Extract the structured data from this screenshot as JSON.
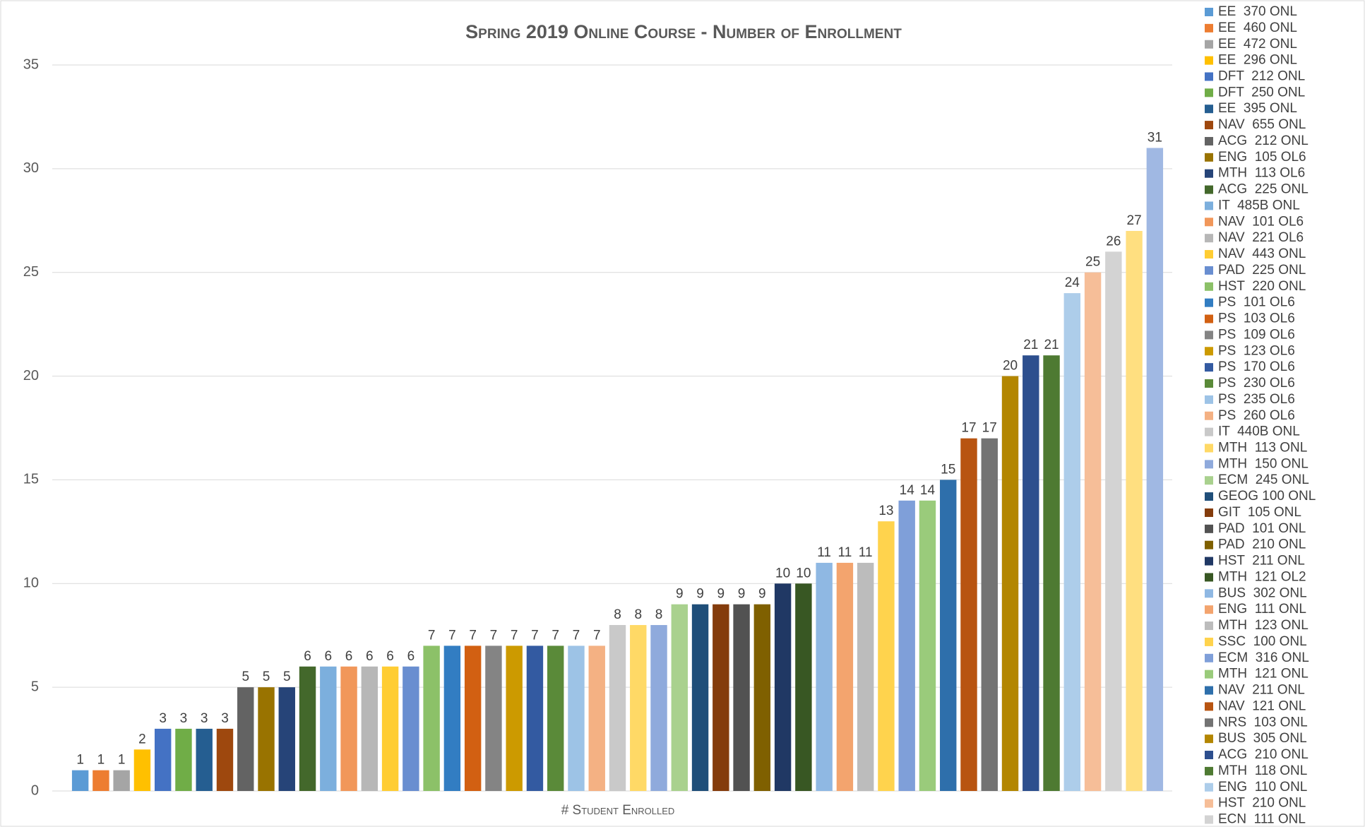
{
  "chart_data": {
    "type": "bar",
    "title": "Spring 2019 Online Course - Number of Enrollment",
    "x_label": "# Student Enrolled",
    "categories": [
      "EE  370 ONL",
      "EE  460 ONL",
      "EE  472 ONL",
      "EE  296 ONL",
      "DFT  212 ONL",
      "DFT  250 ONL",
      "EE  395 ONL",
      "NAV  655 ONL",
      "ACG  212 ONL",
      "ENG  105 OL6",
      "MTH  113 OL6",
      "ACG  225 ONL",
      "IT  485B ONL",
      "NAV  101 OL6",
      "NAV  221 OL6",
      "NAV  443 ONL",
      "PAD  225 ONL",
      "HST  220 ONL",
      "PS  101 OL6",
      "PS  103 OL6",
      "PS  109 OL6",
      "PS  123 OL6",
      "PS  170 OL6",
      "PS  230 OL6",
      "PS  235 OL6",
      "PS  260 OL6",
      "IT  440B ONL",
      "MTH  113 ONL",
      "MTH  150 ONL",
      "ECM  245 ONL",
      "GEOG 100 ONL",
      "GIT  105 ONL",
      "PAD  101 ONL",
      "PAD  210 ONL",
      "HST  211 ONL",
      "MTH  121 OL2",
      "BUS  302 ONL",
      "ENG  111 ONL",
      "MTH  123 ONL",
      "SSC  100 ONL",
      "ECM  316 ONL",
      "MTH  121 ONL",
      "NAV  211 ONL",
      "NAV  121 ONL",
      "NRS  103 ONL",
      "BUS  305 ONL",
      "ACG  210 ONL",
      "MTH  118 ONL",
      "ENG  110 ONL",
      "HST  210 ONL",
      "ECN  111 ONL",
      null,
      null
    ],
    "values": [
      1,
      1,
      1,
      2,
      3,
      3,
      3,
      3,
      5,
      5,
      5,
      6,
      6,
      6,
      6,
      6,
      6,
      7,
      7,
      7,
      7,
      7,
      7,
      7,
      7,
      7,
      8,
      8,
      8,
      9,
      9,
      9,
      9,
      9,
      10,
      10,
      11,
      11,
      11,
      13,
      14,
      14,
      15,
      17,
      17,
      20,
      21,
      21,
      24,
      25,
      26,
      27,
      31
    ],
    "colors": [
      "#5B9BD5",
      "#ED7D31",
      "#A5A5A5",
      "#FFC000",
      "#4472C4",
      "#70AD47",
      "#255E91",
      "#9E480E",
      "#636363",
      "#997300",
      "#264478",
      "#43682B",
      "#7CAFDD",
      "#F1975A",
      "#B7B7B7",
      "#FFCD33",
      "#698ED0",
      "#8CC168",
      "#327DC2",
      "#D26012",
      "#848484",
      "#CC9A00",
      "#335AA1",
      "#5A8A39",
      "#9DC3E6",
      "#F4B183",
      "#C9C9C9",
      "#FFD966",
      "#8FAADC",
      "#A9D18E",
      "#1F4E79",
      "#843C0C",
      "#525252",
      "#7F6000",
      "#203864",
      "#385723",
      "#8FB8E3",
      "#F3A46E",
      "#BCBCBC",
      "#FFD34D",
      "#7F9FD9",
      "#9ACB7B",
      "#2E6FAB",
      "#B85411",
      "#737373",
      "#B38600",
      "#2D4F8E",
      "#4E7A32",
      "#ADCDEA",
      "#F6BE98",
      "#D3D3D3",
      "#FFDF80",
      "#A0B8E3"
    ],
    "ylim": [
      0,
      35
    ],
    "yticks": [
      0,
      5,
      10,
      15,
      20,
      25,
      30,
      35
    ],
    "grid": true
  }
}
